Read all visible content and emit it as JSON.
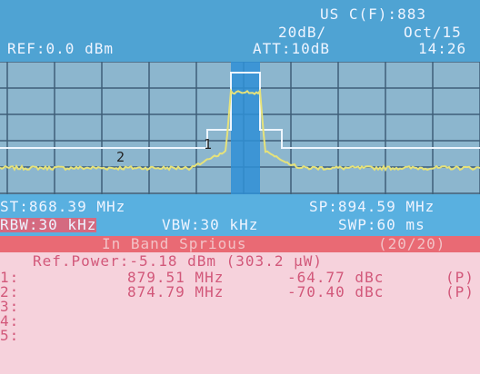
{
  "header": {
    "counter": "US C(F):883",
    "scale": "20dB/",
    "date": "Oct/15",
    "ref_level": "REF:0.0 dBm",
    "attenuation": "ATT:10dB",
    "time": "14:26"
  },
  "markers": [
    "2",
    "1"
  ],
  "status": {
    "start": "ST:868.39 MHz",
    "stop": "SP:894.59 MHz",
    "rbw": "RBW:30 kHz",
    "vbw": "VBW:30 kHz",
    "sweep": "SWP:60 ms"
  },
  "measurement": {
    "title": "In Band Sprious",
    "count": "(20/20)",
    "ref_power": "Ref.Power:-5.18 dBm (303.2 μW)",
    "rows": [
      {
        "index": "1:",
        "frequency": "879.51 MHz",
        "level": "-64.77 dBc",
        "flag": "(P)"
      },
      {
        "index": "2:",
        "frequency": "874.79 MHz",
        "level": "-70.40 dBc",
        "flag": "(P)"
      },
      {
        "index": "3:"
      },
      {
        "index": "4:"
      },
      {
        "index": "5:"
      }
    ]
  }
}
